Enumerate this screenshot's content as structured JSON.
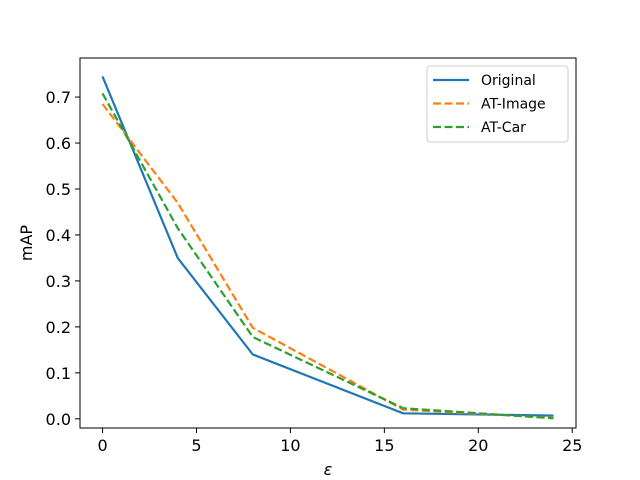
{
  "chart_data": {
    "type": "line",
    "title": "",
    "xlabel": "ε",
    "ylabel": "mAP",
    "xlim": [
      -1.2,
      25.2
    ],
    "ylim": [
      -0.02,
      0.785
    ],
    "xticks": [
      0,
      5,
      10,
      15,
      20,
      25
    ],
    "yticks": [
      0.0,
      0.1,
      0.2,
      0.3,
      0.4,
      0.5,
      0.6,
      0.7
    ],
    "xtick_labels": [
      "0",
      "5",
      "10",
      "15",
      "20",
      "25"
    ],
    "ytick_labels": [
      "0.0",
      "0.1",
      "0.2",
      "0.3",
      "0.4",
      "0.5",
      "0.6",
      "0.7"
    ],
    "grid": false,
    "legend_position": "top-right",
    "series": [
      {
        "name": "Original",
        "color": "#1f77b4",
        "style": "solid",
        "x": [
          0,
          4,
          8,
          16,
          24
        ],
        "y": [
          0.745,
          0.35,
          0.14,
          0.012,
          0.007
        ]
      },
      {
        "name": "AT-Image",
        "color": "#ff7f0e",
        "style": "dashed",
        "x": [
          0,
          4,
          8,
          16,
          24
        ],
        "y": [
          0.685,
          0.47,
          0.198,
          0.02,
          0.002
        ]
      },
      {
        "name": "AT-Car",
        "color": "#2ca02c",
        "style": "dashed",
        "x": [
          0,
          4,
          8,
          16,
          24
        ],
        "y": [
          0.708,
          0.415,
          0.178,
          0.023,
          0.001
        ]
      }
    ]
  }
}
